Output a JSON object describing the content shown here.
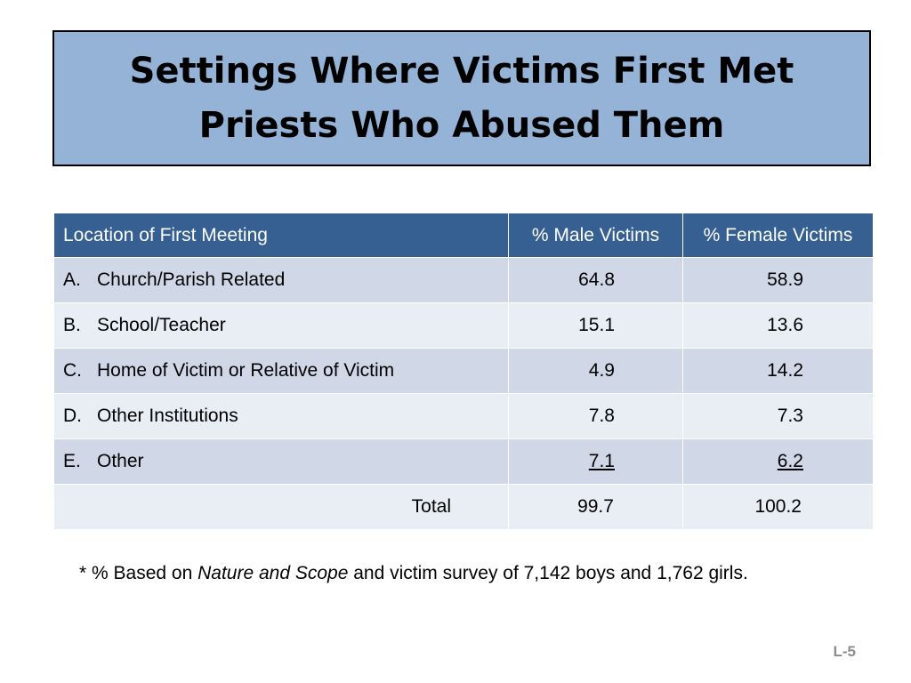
{
  "title": {
    "line1": "Settings Where Victims First Met",
    "line2": "Priests Who Abused Them"
  },
  "table": {
    "headers": {
      "location": "Location of First Meeting",
      "male": "% Male Victims",
      "female": "% Female Victims"
    },
    "rows": [
      {
        "letter": "A.",
        "location": "Church/Parish Related",
        "male": "64.8",
        "female": "58.9"
      },
      {
        "letter": "B.",
        "location": "School/Teacher",
        "male": "15.1",
        "female": "13.6"
      },
      {
        "letter": "C.",
        "location": "Home of Victim or Relative of Victim",
        "male": "4.9",
        "female": "14.2"
      },
      {
        "letter": "D.",
        "location": "Other Institutions",
        "male": "7.8",
        "female": "7.3"
      },
      {
        "letter": "E.",
        "location": "Other",
        "male": "7.1",
        "female": "6.2"
      }
    ],
    "total": {
      "label": "Total",
      "male": "99.7",
      "female": "100.2"
    }
  },
  "footnote": {
    "prefix": "* % Based on ",
    "italic": "Nature and Scope",
    "suffix": " and victim survey of 7,142 boys and 1,762 girls."
  },
  "page_number": "L-5",
  "colors": {
    "title_bg": "#95b3d7",
    "header_bg": "#366092",
    "row_odd": "#d0d8e8",
    "row_even": "#e9edf4"
  }
}
